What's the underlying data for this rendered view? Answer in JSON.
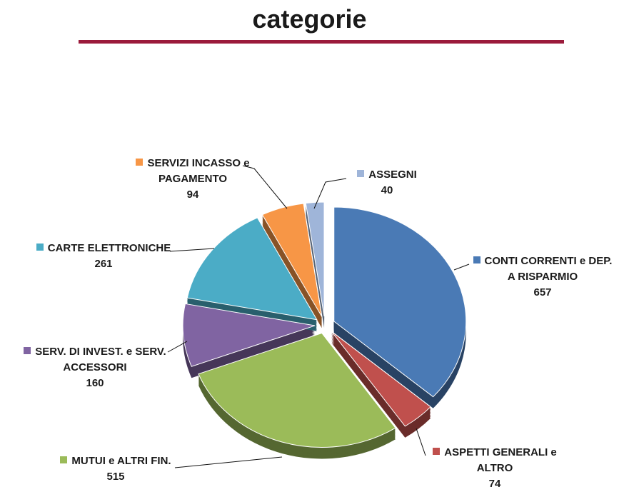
{
  "chart_data": {
    "type": "pie",
    "title": "categorie",
    "categories": [
      "CONTI CORRENTI e DEP.\nA RISPARMIO",
      "ASPETTI GENERALI e\nALTRO",
      "MUTUI e ALTRI FIN.",
      "SERV. DI INVEST. e SERV.\nACCESSORI",
      "CARTE ELETTRONICHE",
      "SERVIZI INCASSO e\nPAGAMENTO",
      "ASSEGNI"
    ],
    "values": [
      657,
      74,
      515,
      160,
      261,
      94,
      40
    ],
    "colors": [
      "#4a7ab5",
      "#c0504d",
      "#9bbb59",
      "#8064a2",
      "#4bacc6",
      "#f79646",
      "#9fb5d9"
    ]
  }
}
